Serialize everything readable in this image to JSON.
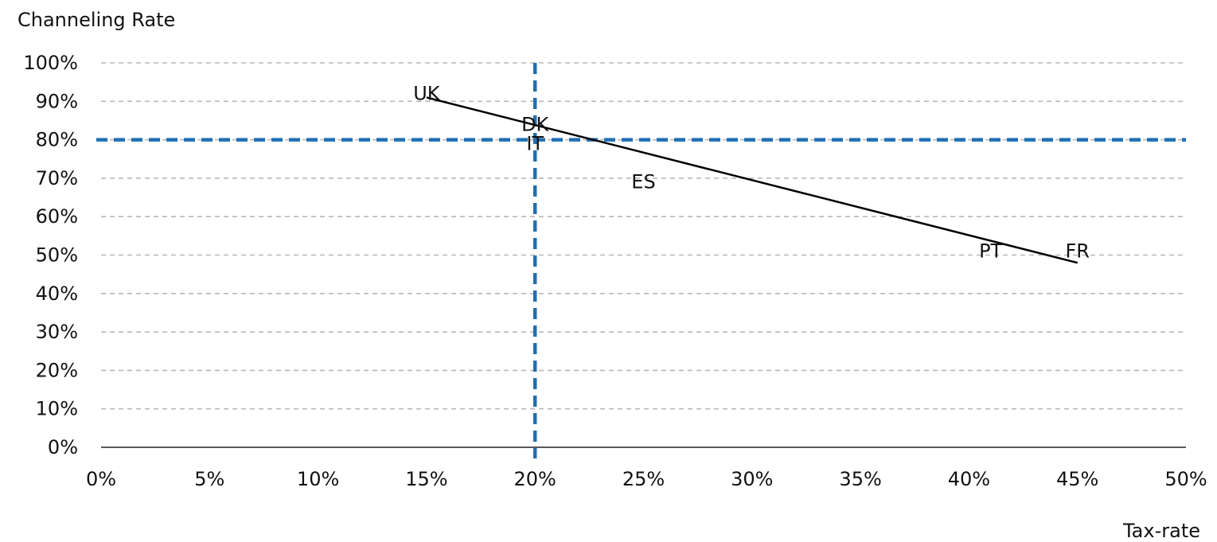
{
  "chart_data": {
    "type": "scatter",
    "title": "",
    "ylabel": "Channeling Rate",
    "xlabel": "Tax-rate",
    "xlim": [
      0,
      0.5
    ],
    "ylim": [
      0,
      1.0
    ],
    "x_ticks": [
      0,
      0.05,
      0.1,
      0.15,
      0.2,
      0.25,
      0.3,
      0.35,
      0.4,
      0.45,
      0.5
    ],
    "x_tick_labels": [
      "0%",
      "5%",
      "10%",
      "15%",
      "20%",
      "25%",
      "30%",
      "35%",
      "40%",
      "45%",
      "50%"
    ],
    "y_ticks": [
      0,
      0.1,
      0.2,
      0.3,
      0.4,
      0.5,
      0.6,
      0.7,
      0.8,
      0.9,
      1.0
    ],
    "y_tick_labels": [
      "0%",
      "10%",
      "20%",
      "30%",
      "40%",
      "50%",
      "60%",
      "70%",
      "80%",
      "90%",
      "100%"
    ],
    "grid": "horizontal dashed",
    "points": [
      {
        "label": "UK",
        "x": 0.15,
        "y": 0.92
      },
      {
        "label": "DK",
        "x": 0.2,
        "y": 0.84
      },
      {
        "label": "IT",
        "x": 0.2,
        "y": 0.79
      },
      {
        "label": "ES",
        "x": 0.25,
        "y": 0.69
      },
      {
        "label": "PT",
        "x": 0.41,
        "y": 0.51
      },
      {
        "label": "FR",
        "x": 0.45,
        "y": 0.51
      }
    ],
    "trendline": {
      "x": [
        0.15,
        0.45
      ],
      "y": [
        0.91,
        0.48
      ],
      "color": "#000000"
    },
    "reference_lines": {
      "vertical_x": 0.2,
      "horizontal_y": 0.8,
      "color": "#1f6fb5"
    }
  }
}
